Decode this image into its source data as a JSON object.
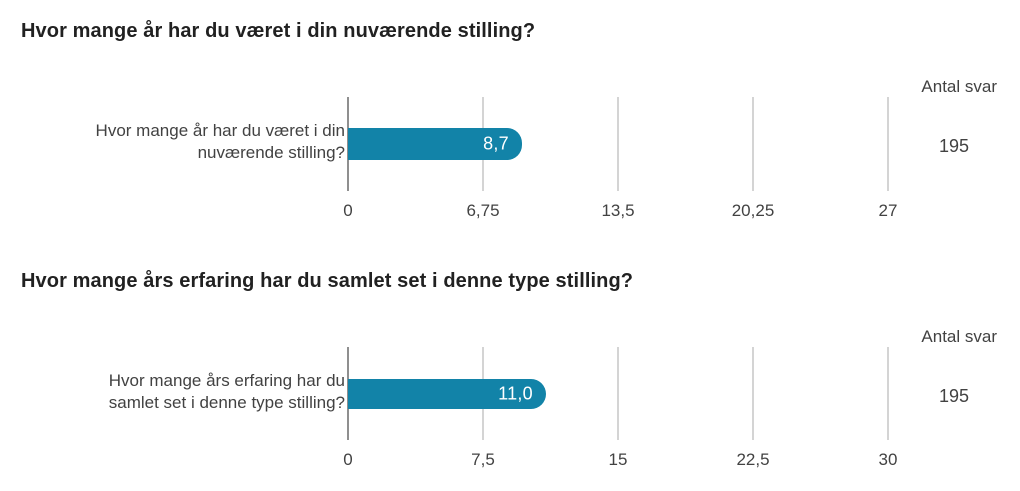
{
  "colors": {
    "bar": "#1283a8",
    "title_text": "#212121",
    "label_text": "#424242",
    "gridline": "#d4d4d4",
    "zero_line": "#8f8f8f",
    "bar_value_text": "#ffffff",
    "background": "#ffffff"
  },
  "charts": [
    {
      "title": "Hvor mange år har du været i din nuværende stilling?",
      "antal_svar_label": "Antal svar",
      "antal_svar": "195",
      "category_label_lines": [
        "Hvor mange år har du været i din",
        "nuværende stilling?"
      ],
      "value_label": "8,7"
    },
    {
      "title": "Hvor mange års erfaring har du samlet set i denne type stilling?",
      "antal_svar_label": "Antal svar",
      "antal_svar": "195",
      "category_label_lines": [
        "Hvor mange års erfaring har du",
        "samlet set i denne type stilling?"
      ],
      "value_label": "11,0"
    }
  ],
  "chart_data": [
    {
      "type": "bar",
      "orientation": "horizontal",
      "title": "Hvor mange år har du været i din nuværende stilling?",
      "categories": [
        "Hvor mange år har du været i din nuværende stilling?"
      ],
      "values": [
        8.7
      ],
      "value_labels": [
        "8,7"
      ],
      "xlim": [
        0,
        27
      ],
      "xticks": [
        0,
        6.75,
        13.5,
        20.25,
        27
      ],
      "xtick_labels": [
        "0",
        "6,75",
        "13,5",
        "20,25",
        "27"
      ],
      "grid": true,
      "legend": false,
      "bar_color": "#1283a8",
      "answers_header": "Antal svar",
      "answers_count": 195
    },
    {
      "type": "bar",
      "orientation": "horizontal",
      "title": "Hvor mange års erfaring har du samlet set i denne type stilling?",
      "categories": [
        "Hvor mange års erfaring har du samlet set i denne type stilling?"
      ],
      "values": [
        11.0
      ],
      "value_labels": [
        "11,0"
      ],
      "xlim": [
        0,
        30
      ],
      "xticks": [
        0,
        7.5,
        15,
        22.5,
        30
      ],
      "xtick_labels": [
        "0",
        "7,5",
        "15",
        "22,5",
        "30"
      ],
      "grid": true,
      "legend": false,
      "bar_color": "#1283a8",
      "answers_header": "Antal svar",
      "answers_count": 195
    }
  ]
}
